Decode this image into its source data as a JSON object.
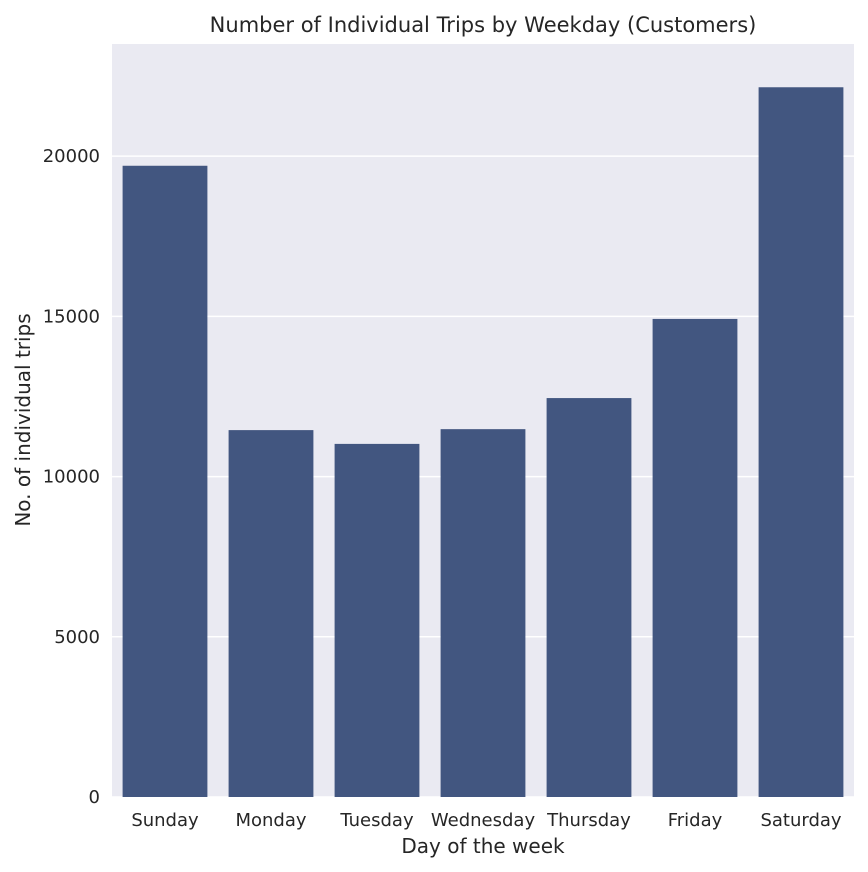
{
  "chart_data": {
    "type": "bar",
    "title": "Number of Individual Trips by Weekday (Customers)",
    "xlabel": "Day of the week",
    "ylabel": "No. of individual trips",
    "categories": [
      "Sunday",
      "Monday",
      "Tuesday",
      "Wednesday",
      "Thursday",
      "Friday",
      "Saturday"
    ],
    "values": [
      19700,
      11450,
      11020,
      11480,
      12450,
      14920,
      22150
    ],
    "ylim": [
      0,
      23500
    ],
    "yticks": [
      0,
      5000,
      10000,
      15000,
      20000
    ],
    "grid": true,
    "legend": "none",
    "colors": {
      "bar": "#425680",
      "plot_background": "#eaeaf2",
      "grid": "#ffffff",
      "text": "#262626"
    }
  }
}
